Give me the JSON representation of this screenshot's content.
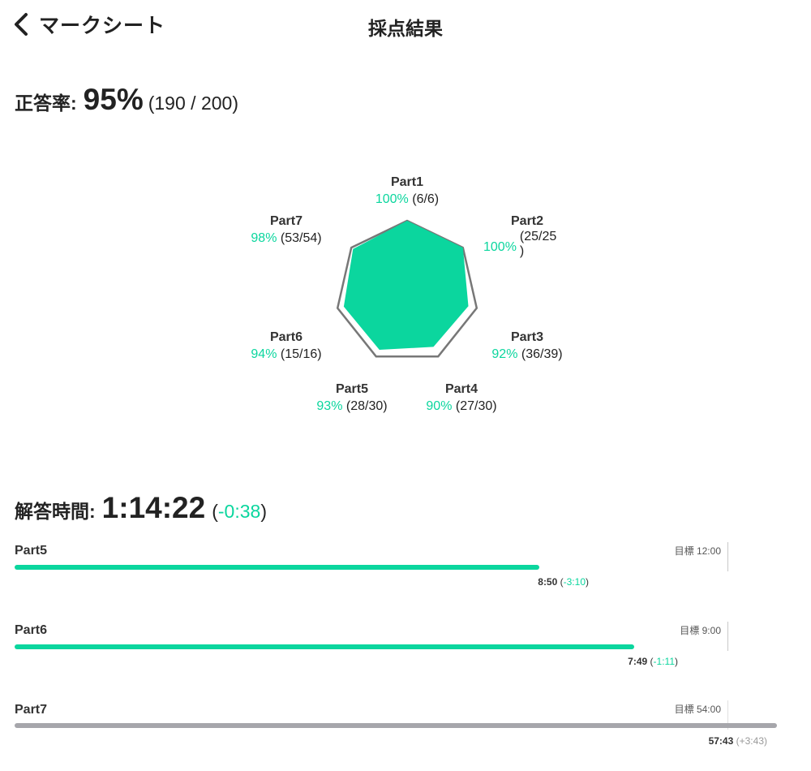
{
  "header": {
    "back_label": "マークシート",
    "title": "採点結果"
  },
  "accuracy": {
    "label": "正答率:",
    "percent": "95%",
    "fraction": "(190 / 200)"
  },
  "radar": {
    "parts": [
      {
        "name": "Part1",
        "pct": "100%",
        "count": "(6/6)",
        "ratio": 1.0
      },
      {
        "name": "Part2",
        "pct": "100%",
        "count": "(25/25",
        "count_tail": ")",
        "ratio": 1.0
      },
      {
        "name": "Part3",
        "pct": "92%",
        "count": "(36/39)",
        "ratio": 0.92
      },
      {
        "name": "Part4",
        "pct": "90%",
        "count": "(27/30)",
        "ratio": 0.9
      },
      {
        "name": "Part5",
        "pct": "93%",
        "count": "(28/30)",
        "ratio": 0.93
      },
      {
        "name": "Part6",
        "pct": "94%",
        "count": "(15/16)",
        "ratio": 0.94
      },
      {
        "name": "Part7",
        "pct": "98%",
        "count": "(53/54)",
        "ratio": 0.98
      }
    ]
  },
  "time": {
    "label": "解答時間:",
    "total": "1:14:22",
    "diff_open": "(",
    "diff": "-0:38",
    "diff_close": ")",
    "bars": [
      {
        "name": "Part5",
        "target": "目標 12:00",
        "used": "8:50",
        "delta": "-3:10",
        "progress": 0.736
      },
      {
        "name": "Part6",
        "target": "目標 9:00",
        "used": "7:49",
        "delta": "-1:11",
        "progress": 0.869
      },
      {
        "name": "Part7",
        "target": "目標 54:00",
        "used": "57:43",
        "delta": "+3:43",
        "progress": 1.069
      }
    ]
  },
  "colors": {
    "accent": "#0bd69e",
    "over": "#a6a6ab",
    "outline": "#777777"
  },
  "icons": {
    "back": "chevron-left-icon"
  }
}
